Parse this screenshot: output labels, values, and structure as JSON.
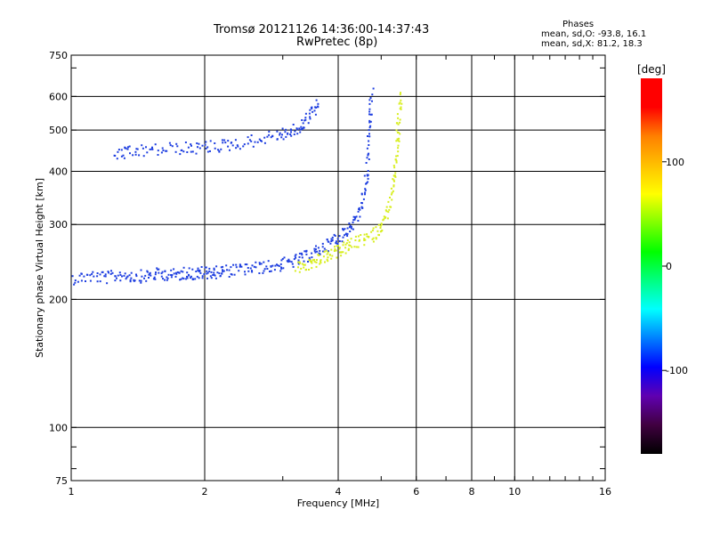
{
  "header": {
    "title_line1": "Tromsø 20121126 14:36:00-14:37:43",
    "title_line2": "RwPretec (8p)"
  },
  "stats": {
    "title": "Phases",
    "line_o": "mean, sd,O: -93.8, 16.1",
    "line_x": "mean, sd,X:  81.2, 18.3"
  },
  "chart_data": {
    "type": "scatter",
    "xlabel": "Frequency [MHz]",
    "ylabel": "Stationary phase Virtual Height [km]",
    "x_scale": "log2",
    "y_scale": "log",
    "xlim": [
      1,
      16
    ],
    "ylim": [
      75,
      750
    ],
    "x_ticks": [
      1,
      2,
      4,
      6,
      8,
      10,
      16
    ],
    "x_tick_labels": [
      "1",
      "2",
      "4",
      "6",
      "8",
      "10",
      "16"
    ],
    "y_ticks": [
      75,
      100,
      200,
      300,
      400,
      500,
      600,
      750
    ],
    "y_tick_labels": [
      "75",
      "100",
      "200",
      "300",
      "400",
      "500",
      "600",
      "750"
    ],
    "grid": true,
    "colorbar": {
      "label": "[deg]",
      "range": [
        -180,
        180
      ],
      "ticks": [
        100,
        0,
        -100
      ],
      "tick_labels": [
        "100",
        "0",
        "-100"
      ],
      "colors": [
        "#000000",
        "#400040",
        "#6000b0",
        "#0000ff",
        "#0080ff",
        "#00ffff",
        "#00ff80",
        "#00ff00",
        "#80ff00",
        "#ffff00",
        "#ffc000",
        "#ff8000",
        "#ff0000",
        "#ff0000"
      ]
    },
    "series": [
      {
        "mode": "O",
        "color": "#1f3fe0",
        "description": "low layer trace",
        "points": [
          [
            1.0,
            225
          ],
          [
            1.1,
            228
          ],
          [
            1.2,
            226
          ],
          [
            1.3,
            230
          ],
          [
            1.4,
            227
          ],
          [
            1.5,
            229
          ],
          [
            1.6,
            231
          ],
          [
            1.7,
            229
          ],
          [
            1.8,
            232
          ],
          [
            1.9,
            230
          ],
          [
            2.0,
            233
          ],
          [
            2.1,
            232
          ],
          [
            2.2,
            234
          ],
          [
            2.4,
            236
          ],
          [
            2.6,
            238
          ],
          [
            2.8,
            240
          ],
          [
            3.0,
            243
          ],
          [
            3.2,
            248
          ],
          [
            3.4,
            254
          ],
          [
            3.6,
            262
          ],
          [
            3.8,
            272
          ],
          [
            4.0,
            282
          ],
          [
            4.2,
            295
          ],
          [
            4.4,
            315
          ],
          [
            4.55,
            350
          ],
          [
            4.65,
            420
          ],
          [
            4.7,
            520
          ],
          [
            4.75,
            620
          ]
        ]
      },
      {
        "mode": "O",
        "color": "#1f3fe0",
        "description": "upper band trace",
        "points": [
          [
            1.25,
            440
          ],
          [
            1.35,
            445
          ],
          [
            1.5,
            450
          ],
          [
            1.7,
            455
          ],
          [
            1.9,
            455
          ],
          [
            2.1,
            460
          ],
          [
            2.3,
            465
          ],
          [
            2.6,
            475
          ],
          [
            2.9,
            490
          ],
          [
            3.1,
            495
          ],
          [
            3.3,
            510
          ],
          [
            3.45,
            550
          ],
          [
            3.6,
            580
          ]
        ]
      },
      {
        "mode": "X",
        "color": "#d8ee20",
        "description": "X-mode trace",
        "points": [
          [
            3.2,
            238
          ],
          [
            3.4,
            242
          ],
          [
            3.6,
            248
          ],
          [
            3.8,
            255
          ],
          [
            4.0,
            262
          ],
          [
            4.2,
            268
          ],
          [
            4.5,
            276
          ],
          [
            4.8,
            285
          ],
          [
            5.0,
            300
          ],
          [
            5.2,
            330
          ],
          [
            5.3,
            380
          ],
          [
            5.4,
            450
          ],
          [
            5.45,
            520
          ],
          [
            5.5,
            620
          ]
        ]
      }
    ]
  }
}
